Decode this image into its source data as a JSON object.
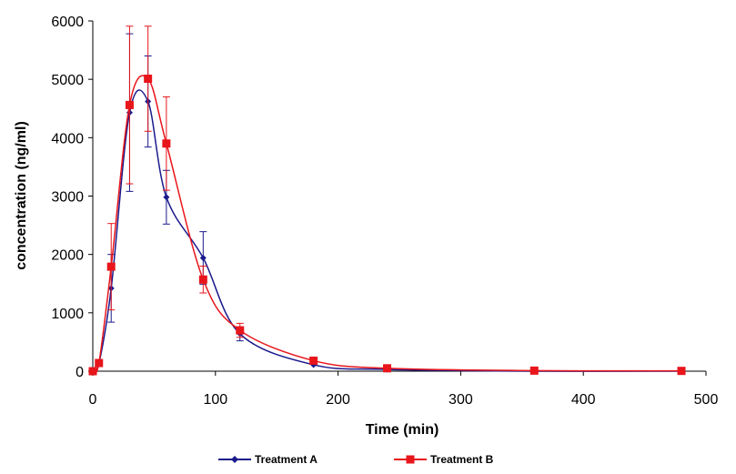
{
  "chart_data": {
    "type": "line",
    "xlabel": "Time (min)",
    "ylabel": "concentration (ng/ml)",
    "xlim": [
      0,
      500
    ],
    "ylim": [
      0,
      6000
    ],
    "xticks": [
      0,
      100,
      200,
      300,
      400,
      500
    ],
    "yticks": [
      0,
      1000,
      2000,
      3000,
      4000,
      5000,
      6000
    ],
    "series": [
      {
        "name": "Treatment A",
        "color": "#1a1a8c",
        "marker": "diamond",
        "x": [
          0,
          5,
          15,
          30,
          45,
          60,
          90,
          120,
          180,
          240,
          360,
          480
        ],
        "y": [
          0,
          130,
          1420,
          4430,
          4620,
          2980,
          1940,
          640,
          110,
          30,
          0,
          0
        ],
        "err": [
          0,
          0,
          580,
          1350,
          780,
          460,
          450,
          120,
          0,
          0,
          0,
          0
        ]
      },
      {
        "name": "Treatment B",
        "color": "#e8151b",
        "marker": "square",
        "x": [
          0,
          5,
          15,
          30,
          45,
          60,
          90,
          120,
          180,
          240,
          360,
          480
        ],
        "y": [
          0,
          140,
          1790,
          4560,
          5010,
          3900,
          1570,
          700,
          180,
          50,
          10,
          5
        ],
        "err": [
          0,
          0,
          740,
          1350,
          900,
          800,
          230,
          120,
          0,
          0,
          0,
          0
        ]
      }
    ]
  }
}
